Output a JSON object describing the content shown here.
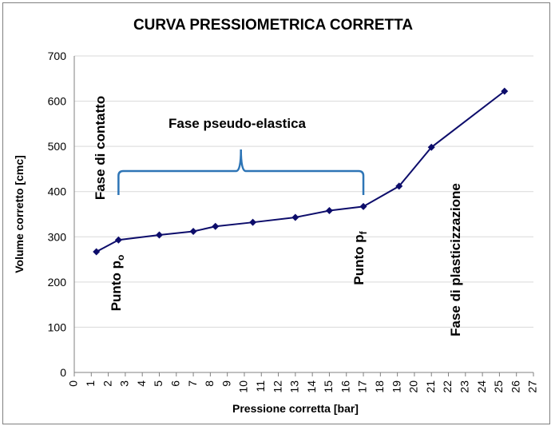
{
  "chart_data": {
    "type": "line",
    "title": "CURVA PRESSIOMETRICA CORRETTA",
    "xlabel": "Pressione corretta [bar]",
    "ylabel": "Volume corretto [cmc]",
    "xlim": [
      0,
      27
    ],
    "ylim": [
      0,
      700
    ],
    "x_ticks": [
      "0",
      "1",
      "2",
      "3",
      "4",
      "5",
      "6",
      "7",
      "8",
      "9",
      "10",
      "11",
      "12",
      "13",
      "14",
      "15",
      "16",
      "17",
      "18",
      "19",
      "20",
      "21",
      "22",
      "23",
      "24",
      "25",
      "26",
      "27"
    ],
    "y_ticks": [
      "0",
      "100",
      "200",
      "300",
      "400",
      "500",
      "600",
      "700"
    ],
    "grid": "horizontal",
    "line_color": "#0d0d6b",
    "brace_color": "#2e75b6",
    "series": [
      {
        "x": [
          1.3,
          2.6,
          5.0,
          7.0,
          8.3,
          10.5,
          13.0,
          15.0,
          17.0,
          19.1,
          21.0,
          25.3
        ],
        "y": [
          267,
          293,
          304,
          312,
          323,
          332,
          343,
          358,
          367,
          412,
          498,
          622
        ]
      }
    ],
    "annotations": {
      "fase_contatto": "Fase di contatto",
      "fase_pseudo": "Fase pseudo-elastica",
      "fase_plastic": "Fase di plasticizzazione",
      "punto_p0_main": "Punto p",
      "punto_p0_sub": "o",
      "punto_pf_main": "Punto p",
      "punto_pf_sub": "f"
    }
  }
}
